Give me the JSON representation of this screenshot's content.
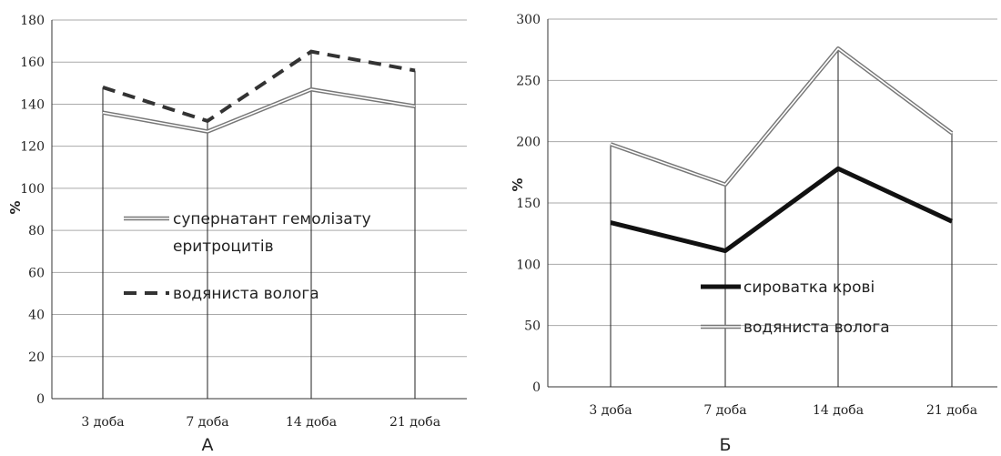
{
  "chart_data": [
    {
      "type": "line",
      "panel_label": "А",
      "categories": [
        "3 доба",
        "7 доба",
        "14 доба",
        "21 доба"
      ],
      "ylabel": "%",
      "ylim": [
        0,
        180
      ],
      "yticks": [
        0,
        20,
        40,
        60,
        80,
        100,
        120,
        140,
        160,
        180
      ],
      "grid": true,
      "legend_position": "center-left",
      "series": [
        {
          "name": "супернатант гемолізату еритроцитів",
          "legend_lines": [
            "супернатант гемолізату",
            "еритроцитів"
          ],
          "style": "double",
          "color": "#777777",
          "values": [
            136,
            127,
            147,
            139
          ]
        },
        {
          "name": "водяниста волога",
          "legend_lines": [
            "водяниста волога"
          ],
          "style": "dashed",
          "color": "#333333",
          "values": [
            148,
            132,
            165,
            156
          ]
        }
      ]
    },
    {
      "type": "line",
      "panel_label": "Б",
      "categories": [
        "3 доба",
        "7 доба",
        "14 доба",
        "21 доба"
      ],
      "ylabel": "%",
      "ylim": [
        0,
        300
      ],
      "yticks": [
        0,
        50,
        100,
        150,
        200,
        250,
        300
      ],
      "grid": true,
      "legend_position": "center",
      "series": [
        {
          "name": "сироватка крові",
          "legend_lines": [
            "сироватка крові"
          ],
          "style": "thick",
          "color": "#111111",
          "values": [
            134,
            111,
            178,
            135
          ]
        },
        {
          "name": "водяниста волога",
          "legend_lines": [
            "водяниста волога"
          ],
          "style": "double",
          "color": "#777777",
          "values": [
            198,
            165,
            276,
            207
          ]
        }
      ]
    }
  ]
}
